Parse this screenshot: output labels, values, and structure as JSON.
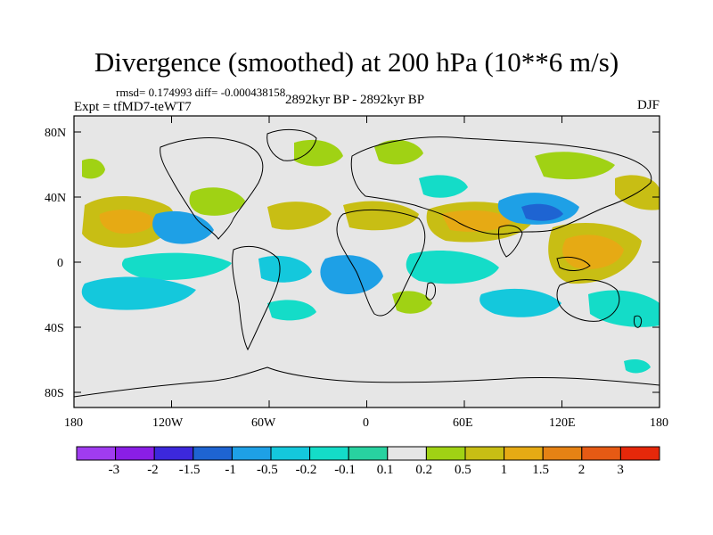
{
  "title": "Divergence (smoothed) at 200 hPa (10**6 m/s)",
  "stats": "rmsd= 0.174993 diff= -0.000438158",
  "experiment": "Expt = tfMD7-teWT7",
  "period": "2892kyr BP - 2892kyr BP",
  "season": "DJF",
  "lat_labels": [
    "80N",
    "40N",
    "0",
    "40S",
    "80S"
  ],
  "lon_labels": [
    "180",
    "120W",
    "60W",
    "0",
    "60E",
    "120E",
    "180"
  ],
  "colorbar": {
    "labels": [
      "-3",
      "-2",
      "-1.5",
      "-1",
      "-0.5",
      "-0.2",
      "-0.1",
      "0.1",
      "0.2",
      "0.5",
      "1",
      "1.5",
      "2",
      "3"
    ],
    "colors": [
      "#8a1ee6",
      "#3c28dc",
      "#1e64d2",
      "#1ea0e6",
      "#14c8dc",
      "#14dcc8",
      "#28d2a0",
      "#e6e6e6",
      "#a0d214",
      "#c8be14",
      "#e6aa14",
      "#e68214",
      "#e65a14",
      "#e6280a"
    ]
  },
  "colors": {
    "ocean_background": "#e6e6e6",
    "coast": "#000000"
  }
}
